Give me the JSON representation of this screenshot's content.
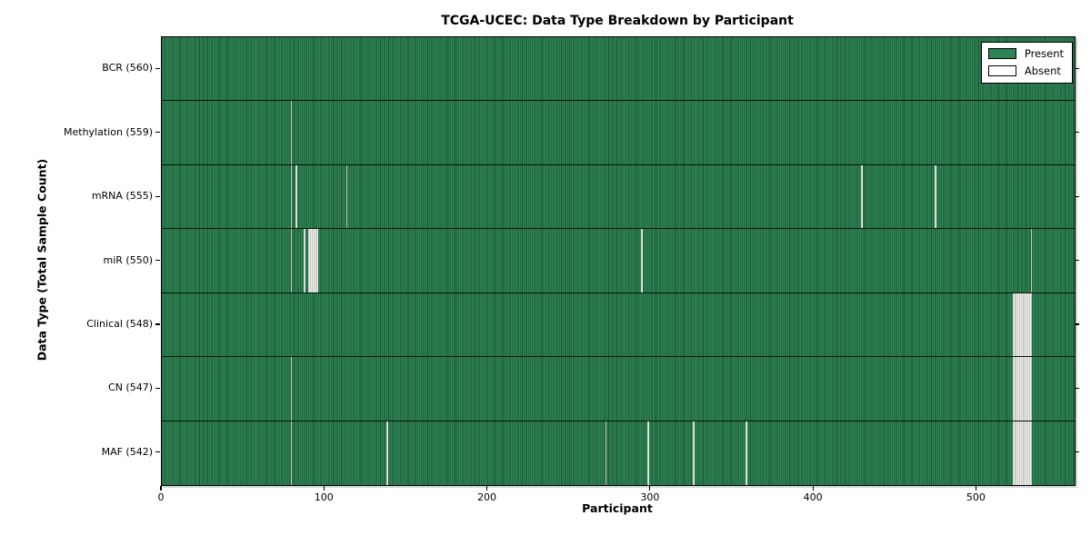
{
  "title": "TCGA-UCEC: Data Type Breakdown by Participant",
  "xlabel": "Participant",
  "ylabel": "Data Type (Total Sample Count)",
  "legend": {
    "present_label": "Present",
    "absent_label": "Absent"
  },
  "colors": {
    "present_fill": "#2e8455",
    "bar_edge": "#1a5030",
    "absent_fill": "#efefec",
    "absent_edge": "#a2a2a0",
    "row_divider": "#061209",
    "axis": "#000000"
  },
  "chart_data": {
    "type": "heatmap",
    "title": "TCGA-UCEC: Data Type Breakdown by Participant",
    "xlabel": "Participant",
    "ylabel": "Data Type (Total Sample Count)",
    "legend_entries": [
      "Present",
      "Absent"
    ],
    "legend_position": "upper right",
    "total_participants": 560,
    "x_axis": {
      "min": 0,
      "max": 560,
      "ticks": [
        0,
        100,
        200,
        300,
        400,
        500
      ]
    },
    "rows": [
      {
        "name": "BCR",
        "label": "BCR (560)",
        "present_count": 560,
        "absent_count": 0,
        "absent_participants": []
      },
      {
        "name": "Methylation",
        "label": "Methylation (559)",
        "present_count": 559,
        "absent_count": 1,
        "absent_participants": [
          79
        ]
      },
      {
        "name": "mRNA",
        "label": "mRNA (555)",
        "present_count": 555,
        "absent_count": 5,
        "absent_participants": [
          79,
          82,
          113,
          429,
          474
        ]
      },
      {
        "name": "miR",
        "label": "miR (550)",
        "present_count": 550,
        "absent_count": 10,
        "absent_participants": [
          79,
          87,
          90,
          91,
          92,
          93,
          94,
          95,
          294,
          533
        ]
      },
      {
        "name": "Clinical",
        "label": "Clinical (548)",
        "present_count": 548,
        "absent_count": 12,
        "absent_participants": [
          522,
          523,
          524,
          525,
          526,
          527,
          528,
          529,
          530,
          531,
          532,
          533
        ]
      },
      {
        "name": "CN",
        "label": "CN (547)",
        "present_count": 547,
        "absent_count": 13,
        "absent_participants": [
          79,
          522,
          523,
          524,
          525,
          526,
          527,
          528,
          529,
          530,
          531,
          532,
          533
        ]
      },
      {
        "name": "MAF",
        "label": "MAF (542)",
        "present_count": 542,
        "absent_count": 18,
        "absent_participants": [
          79,
          138,
          272,
          298,
          326,
          358,
          522,
          523,
          524,
          525,
          526,
          527,
          528,
          529,
          530,
          531,
          532,
          533
        ]
      }
    ]
  }
}
